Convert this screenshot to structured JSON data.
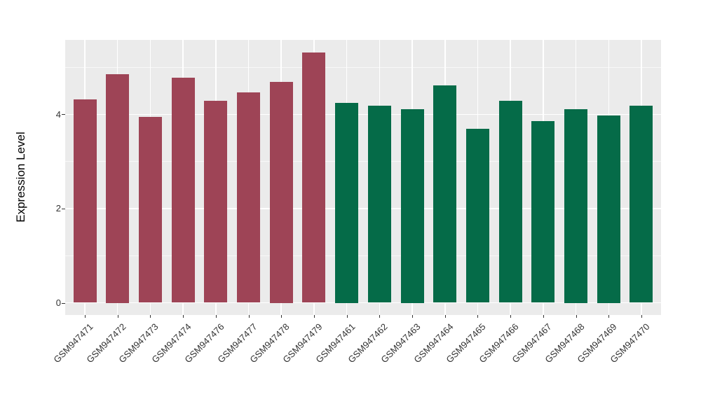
{
  "chart_data": {
    "type": "bar",
    "title": "",
    "xlabel": "",
    "ylabel": "Expression Level",
    "categories": [
      "GSM947471",
      "GSM947472",
      "GSM947473",
      "GSM947474",
      "GSM947476",
      "GSM947477",
      "GSM947478",
      "GSM947479",
      "GSM947461",
      "GSM947462",
      "GSM947463",
      "GSM947464",
      "GSM947465",
      "GSM947466",
      "GSM947467",
      "GSM947468",
      "GSM947469",
      "GSM947470"
    ],
    "values": [
      4.31,
      4.85,
      3.94,
      4.78,
      4.28,
      4.47,
      4.69,
      5.31,
      4.24,
      4.19,
      4.11,
      4.61,
      3.69,
      4.29,
      3.85,
      4.11,
      3.97,
      4.18
    ],
    "bar_colors": [
      "#9E4456",
      "#9E4456",
      "#9E4456",
      "#9E4456",
      "#9E4456",
      "#9E4456",
      "#9E4456",
      "#9E4456",
      "#056B48",
      "#056B48",
      "#056B48",
      "#056B48",
      "#056B48",
      "#056B48",
      "#056B48",
      "#056B48",
      "#056B48",
      "#056B48"
    ],
    "group_palette": {
      "left_group": "#9E4456",
      "right_group": "#056B48"
    },
    "yticks": [
      0,
      2,
      4
    ],
    "ytick_labels": [
      "0",
      "2",
      "4"
    ],
    "yticks_minor": [
      1,
      3,
      5
    ],
    "ylim": [
      -0.26,
      5.58
    ],
    "grid": true,
    "legend": "none",
    "panel_background": "#EBEBEB",
    "grid_color": "#FFFFFF",
    "x_label_angle_deg": 45
  }
}
